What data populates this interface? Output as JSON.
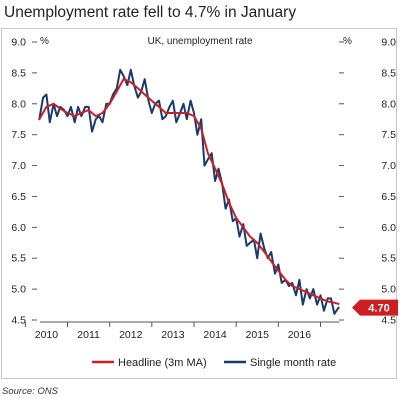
{
  "title": "Unemployment rate fell to 4.7% in January",
  "source": "Source: ONS",
  "chart_data": {
    "type": "line",
    "subtitle": "UK, unemployment rate",
    "y_unit_left": "%",
    "y_unit_right": "%",
    "ylim": [
      4.5,
      9.0
    ],
    "y_ticks": [
      "9.0",
      "8.5",
      "8.0",
      "7.5",
      "7.0",
      "6.5",
      "6.0",
      "5.5",
      "5.0",
      "4.5"
    ],
    "x_tick_labels": [
      "2010",
      "2011",
      "2012",
      "2013",
      "2014",
      "2015",
      "2016"
    ],
    "x_range": [
      2009.8,
      2017.2
    ],
    "grid": false,
    "legend_position": "bottom",
    "latest_value_label": "4.70",
    "colors": {
      "headline": "#cc1f24",
      "single": "#1a3a6b",
      "axis": "#555555",
      "text": "#222222"
    },
    "series": [
      {
        "name": "Headline (3m MA)",
        "color": "#cc1f24",
        "points": [
          [
            2009.83,
            7.75
          ],
          [
            2010.0,
            7.95
          ],
          [
            2010.17,
            8.0
          ],
          [
            2010.33,
            7.92
          ],
          [
            2010.5,
            7.85
          ],
          [
            2010.67,
            7.8
          ],
          [
            2010.83,
            7.85
          ],
          [
            2011.0,
            7.9
          ],
          [
            2011.17,
            7.8
          ],
          [
            2011.33,
            7.85
          ],
          [
            2011.5,
            8.0
          ],
          [
            2011.67,
            8.2
          ],
          [
            2011.83,
            8.4
          ],
          [
            2012.0,
            8.35
          ],
          [
            2012.17,
            8.25
          ],
          [
            2012.33,
            8.15
          ],
          [
            2012.5,
            8.05
          ],
          [
            2012.67,
            7.95
          ],
          [
            2012.83,
            7.85
          ],
          [
            2013.0,
            7.85
          ],
          [
            2013.17,
            7.85
          ],
          [
            2013.33,
            7.85
          ],
          [
            2013.5,
            7.8
          ],
          [
            2013.67,
            7.6
          ],
          [
            2013.83,
            7.2
          ],
          [
            2014.0,
            6.95
          ],
          [
            2014.17,
            6.7
          ],
          [
            2014.33,
            6.4
          ],
          [
            2014.5,
            6.15
          ],
          [
            2014.67,
            6.0
          ],
          [
            2014.83,
            5.85
          ],
          [
            2015.0,
            5.75
          ],
          [
            2015.17,
            5.6
          ],
          [
            2015.33,
            5.45
          ],
          [
            2015.5,
            5.3
          ],
          [
            2015.67,
            5.15
          ],
          [
            2015.83,
            5.05
          ],
          [
            2016.0,
            5.0
          ],
          [
            2016.17,
            4.95
          ],
          [
            2016.33,
            4.9
          ],
          [
            2016.5,
            4.85
          ],
          [
            2016.67,
            4.8
          ],
          [
            2016.83,
            4.78
          ],
          [
            2016.93,
            4.76
          ]
        ]
      },
      {
        "name": "Single month rate",
        "color": "#1a3a6b",
        "points": [
          [
            2009.83,
            7.75
          ],
          [
            2009.92,
            8.1
          ],
          [
            2010.0,
            8.15
          ],
          [
            2010.08,
            7.7
          ],
          [
            2010.17,
            8.0
          ],
          [
            2010.25,
            7.8
          ],
          [
            2010.33,
            7.95
          ],
          [
            2010.42,
            7.9
          ],
          [
            2010.5,
            7.8
          ],
          [
            2010.58,
            7.95
          ],
          [
            2010.67,
            7.7
          ],
          [
            2010.75,
            7.95
          ],
          [
            2010.83,
            7.8
          ],
          [
            2010.92,
            7.95
          ],
          [
            2011.0,
            7.95
          ],
          [
            2011.08,
            7.55
          ],
          [
            2011.17,
            7.75
          ],
          [
            2011.25,
            7.8
          ],
          [
            2011.33,
            7.7
          ],
          [
            2011.42,
            8.0
          ],
          [
            2011.5,
            8.0
          ],
          [
            2011.58,
            8.15
          ],
          [
            2011.67,
            8.25
          ],
          [
            2011.75,
            8.55
          ],
          [
            2011.83,
            8.45
          ],
          [
            2011.92,
            8.3
          ],
          [
            2012.0,
            8.55
          ],
          [
            2012.08,
            8.3
          ],
          [
            2012.17,
            8.1
          ],
          [
            2012.25,
            8.2
          ],
          [
            2012.33,
            8.4
          ],
          [
            2012.42,
            8.05
          ],
          [
            2012.5,
            7.85
          ],
          [
            2012.58,
            8.0
          ],
          [
            2012.67,
            8.05
          ],
          [
            2012.75,
            7.75
          ],
          [
            2012.83,
            7.8
          ],
          [
            2012.92,
            7.95
          ],
          [
            2013.0,
            8.05
          ],
          [
            2013.08,
            7.7
          ],
          [
            2013.17,
            7.85
          ],
          [
            2013.25,
            8.0
          ],
          [
            2013.33,
            7.75
          ],
          [
            2013.42,
            8.05
          ],
          [
            2013.5,
            7.85
          ],
          [
            2013.58,
            7.5
          ],
          [
            2013.67,
            7.75
          ],
          [
            2013.75,
            7.0
          ],
          [
            2013.83,
            7.1
          ],
          [
            2013.92,
            7.2
          ],
          [
            2014.0,
            6.75
          ],
          [
            2014.08,
            6.95
          ],
          [
            2014.17,
            6.7
          ],
          [
            2014.25,
            6.3
          ],
          [
            2014.33,
            6.45
          ],
          [
            2014.42,
            6.1
          ],
          [
            2014.5,
            6.15
          ],
          [
            2014.58,
            5.85
          ],
          [
            2014.67,
            6.05
          ],
          [
            2014.75,
            5.7
          ],
          [
            2014.83,
            5.75
          ],
          [
            2014.92,
            5.8
          ],
          [
            2015.0,
            5.5
          ],
          [
            2015.08,
            5.9
          ],
          [
            2015.17,
            5.65
          ],
          [
            2015.25,
            5.5
          ],
          [
            2015.33,
            5.6
          ],
          [
            2015.42,
            5.25
          ],
          [
            2015.5,
            5.4
          ],
          [
            2015.58,
            5.1
          ],
          [
            2015.67,
            5.15
          ],
          [
            2015.75,
            5.05
          ],
          [
            2015.83,
            5.1
          ],
          [
            2015.92,
            4.9
          ],
          [
            2016.0,
            5.15
          ],
          [
            2016.08,
            4.75
          ],
          [
            2016.17,
            5.0
          ],
          [
            2016.25,
            4.85
          ],
          [
            2016.33,
            5.0
          ],
          [
            2016.42,
            4.75
          ],
          [
            2016.5,
            4.9
          ],
          [
            2016.58,
            4.65
          ],
          [
            2016.67,
            4.85
          ],
          [
            2016.75,
            4.85
          ],
          [
            2016.83,
            4.6
          ],
          [
            2016.93,
            4.7
          ]
        ]
      }
    ]
  }
}
